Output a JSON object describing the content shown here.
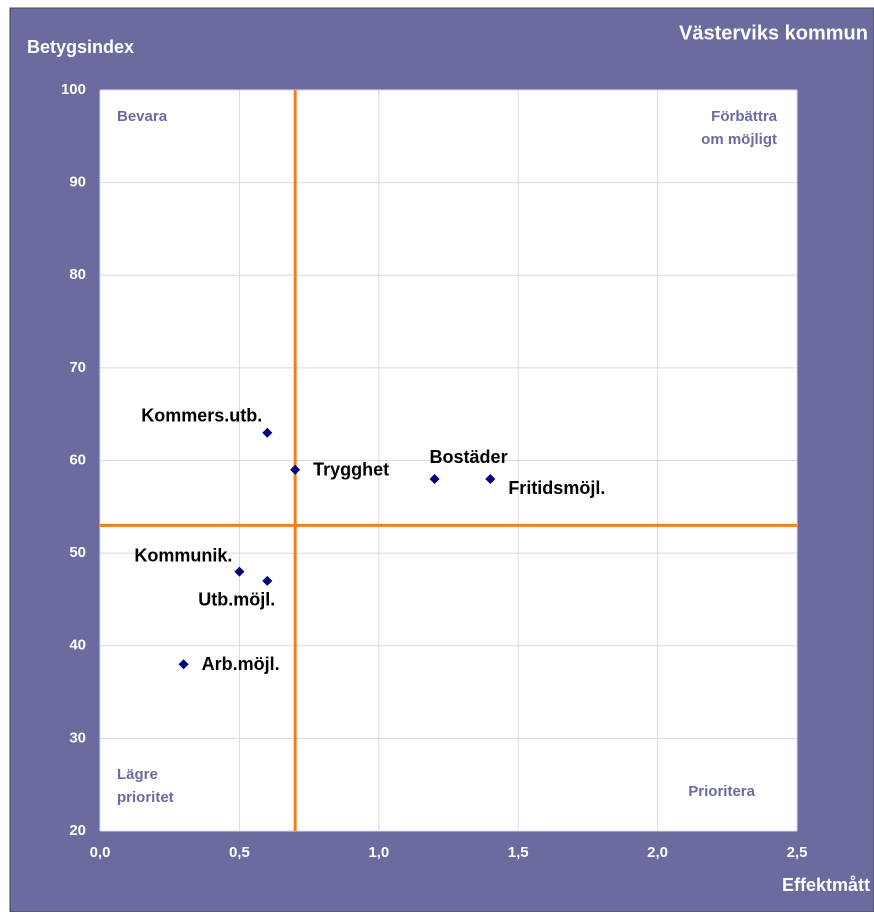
{
  "chart_data": {
    "type": "scatter",
    "title": "Västerviks kommun",
    "x_label": "Effektmått",
    "y_label": "Betygsindex",
    "series": [
      {
        "color": "#000080",
        "labels": [
          "Kommers.utb.",
          "Trygghet",
          "Bostäder",
          "Fritidsmöjl.",
          "Kommunik.",
          "Utb.möjl.",
          "Arb.möjl."
        ],
        "x": [
          0.6,
          0.7,
          1.2,
          1.4,
          0.5,
          0.6,
          0.3
        ],
        "values": [
          63,
          59,
          58,
          58,
          48,
          47,
          38
        ]
      }
    ],
    "xlim": [
      0,
      2.5
    ],
    "xticks": [
      {
        "value": 0,
        "label": "0,0"
      },
      {
        "value": 0.5,
        "label": "0,5"
      },
      {
        "value": 1,
        "label": "1,0"
      },
      {
        "value": 1.5,
        "label": "1,5"
      },
      {
        "value": 2,
        "label": "2,0"
      },
      {
        "value": 2.5,
        "label": "2,5"
      }
    ],
    "ylim": [
      20,
      100
    ],
    "yticks": [
      20,
      30,
      40,
      50,
      60,
      70,
      80,
      90,
      100
    ],
    "grid": true,
    "reference_lines": {
      "x": 0.7,
      "y": 53,
      "color": "#f07f1e"
    },
    "quadrant_labels": [
      [
        "Bevara"
      ],
      [
        "Förbättra",
        "om möjligt"
      ],
      [
        "Lägre",
        "prioritet"
      ],
      [
        "Prioritera"
      ]
    ]
  }
}
